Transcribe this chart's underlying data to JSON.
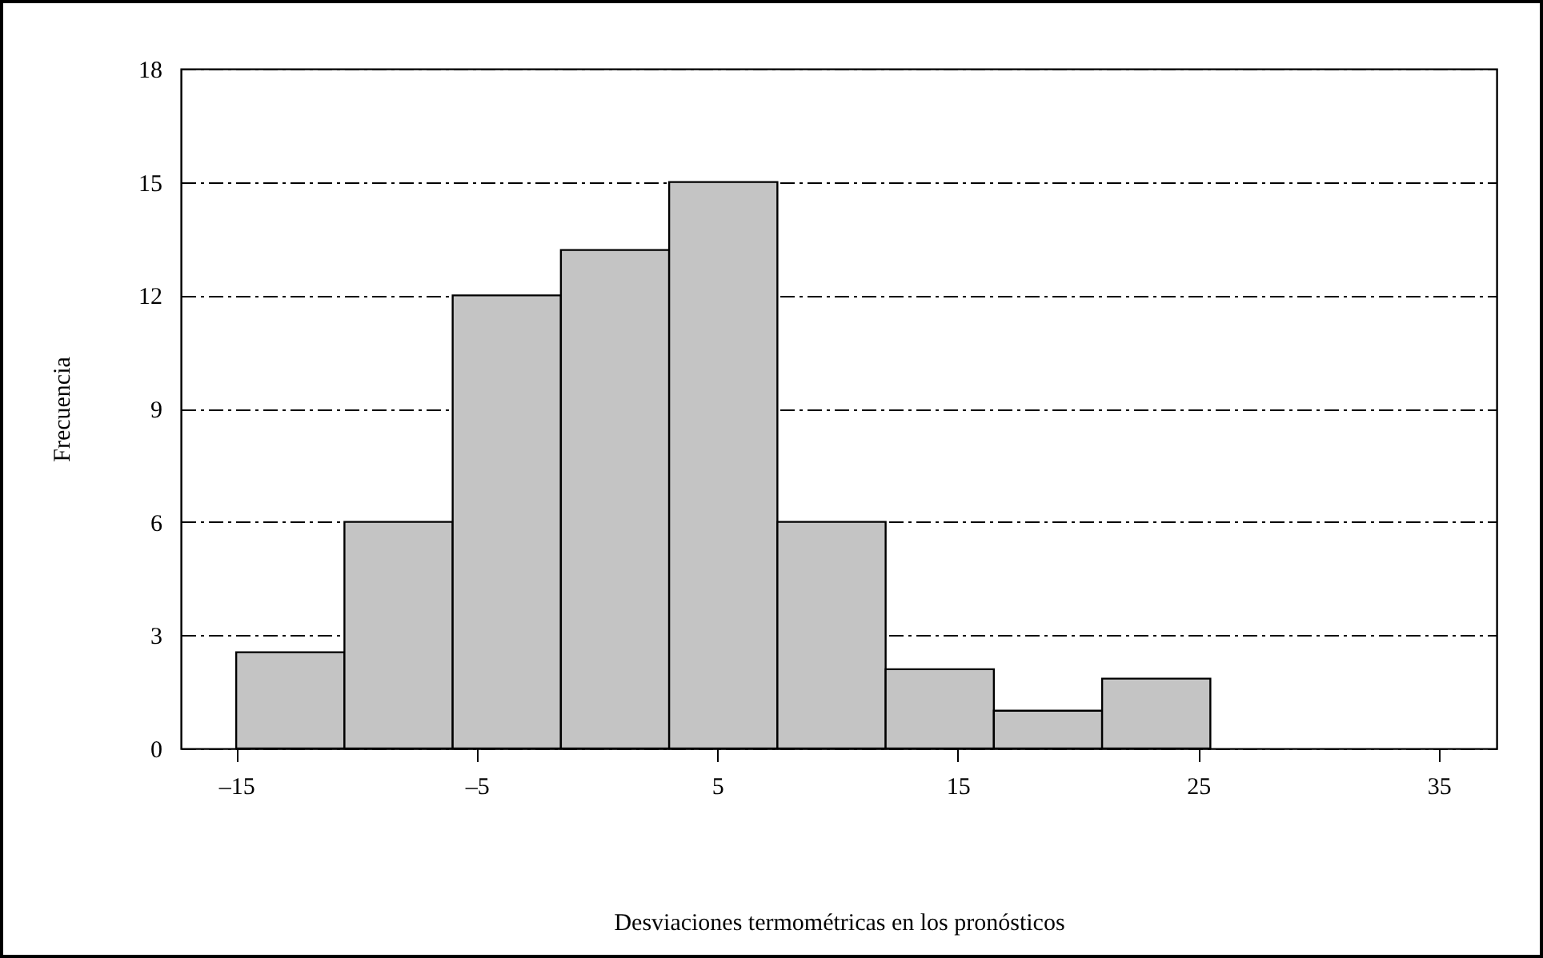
{
  "chart_data": {
    "type": "histogram",
    "xlabel": "Desviaciones termométricas en los pronósticos",
    "ylabel": "Frecuencia",
    "bins": [
      -15,
      -10.5,
      -6,
      -1.5,
      3,
      7.5,
      12,
      16.5,
      21,
      25.5
    ],
    "values": [
      2.55,
      6,
      12,
      13.2,
      15,
      6,
      2.1,
      1,
      1.85
    ],
    "color": "#c4c4c4",
    "xlim": [
      -17.3,
      37.4
    ],
    "xticks": [
      {
        "value": -15,
        "label": "–15"
      },
      {
        "value": -5,
        "label": "–5"
      },
      5,
      15,
      25,
      35
    ],
    "ylim": [
      0,
      18
    ],
    "yticks": [
      0,
      3,
      6,
      9,
      12,
      15,
      18
    ],
    "grid": "y"
  }
}
